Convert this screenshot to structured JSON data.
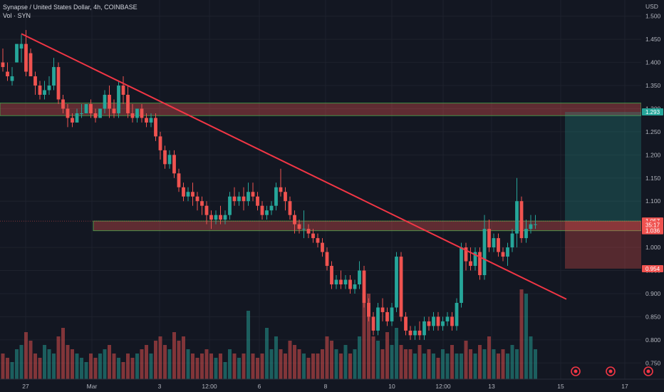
{
  "legend": {
    "line1": "Synapse / United States Dollar, 4h, COINBASE",
    "line2": "Vol · SYN"
  },
  "chart_data": {
    "type": "candlestick",
    "currency_label": "USD",
    "ylim": [
      0.715,
      1.535
    ],
    "y_ticks": [
      "1.500",
      "1.450",
      "1.400",
      "1.350",
      "1.300",
      "1.250",
      "1.200",
      "1.150",
      "1.100",
      "1.000",
      "0.950",
      "0.900",
      "0.850",
      "0.800",
      "0.750"
    ],
    "x_ticks": [
      "27",
      "Mar",
      "3",
      "12:00",
      "6",
      "8",
      "10",
      "12:00",
      "13",
      "15",
      "17"
    ],
    "price_tags": [
      {
        "value": 1.293,
        "label": "1.293",
        "color": "#26a69a"
      },
      {
        "value": 1.057,
        "label": "1.057",
        "color": "#ef5350"
      },
      {
        "value": 1.049,
        "label": "35:17",
        "color": "#ef5350"
      },
      {
        "value": 1.036,
        "label": "1.036",
        "color": "#ef5350"
      },
      {
        "value": 0.954,
        "label": "0.954",
        "color": "#ef5350"
      }
    ],
    "zones": [
      {
        "name": "resistance-zone",
        "top": 1.312,
        "bottom": 1.285
      },
      {
        "name": "support-zone",
        "top": 1.057,
        "bottom": 1.036
      }
    ],
    "trendline": {
      "start": [
        0,
        1.462
      ],
      "end": [
        128,
        0.888
      ]
    },
    "position": {
      "entry": 1.057,
      "target": 1.293,
      "stop": 0.954
    },
    "candles": [
      [
        1.4,
        1.43,
        1.39,
        1.38
      ],
      [
        1.38,
        1.4,
        1.37,
        1.36
      ],
      [
        1.36,
        1.39,
        1.37,
        1.35
      ],
      [
        1.4,
        1.4,
        1.44,
        1.43
      ],
      [
        1.43,
        1.46,
        1.44,
        1.4
      ],
      [
        1.44,
        1.47,
        1.38,
        1.37
      ],
      [
        1.42,
        1.43,
        1.37,
        1.37
      ],
      [
        1.37,
        1.38,
        1.35,
        1.33
      ],
      [
        1.35,
        1.36,
        1.33,
        1.32
      ],
      [
        1.33,
        1.36,
        1.34,
        1.32
      ],
      [
        1.34,
        1.37,
        1.35,
        1.33
      ],
      [
        1.35,
        1.41,
        1.39,
        1.34
      ],
      [
        1.39,
        1.4,
        1.32,
        1.31
      ],
      [
        1.32,
        1.33,
        1.3,
        1.29
      ],
      [
        1.3,
        1.31,
        1.28,
        1.26
      ],
      [
        1.28,
        1.29,
        1.27,
        1.26
      ],
      [
        1.27,
        1.3,
        1.29,
        1.27
      ],
      [
        1.29,
        1.31,
        1.29,
        1.28
      ],
      [
        1.29,
        1.31,
        1.31,
        1.29
      ],
      [
        1.31,
        1.32,
        1.29,
        1.28
      ],
      [
        1.29,
        1.3,
        1.28,
        1.27
      ],
      [
        1.28,
        1.29,
        1.3,
        1.28
      ],
      [
        1.3,
        1.34,
        1.33,
        1.29
      ],
      [
        1.33,
        1.35,
        1.3,
        1.28
      ],
      [
        1.3,
        1.32,
        1.29,
        1.28
      ],
      [
        1.29,
        1.36,
        1.35,
        1.28
      ],
      [
        1.35,
        1.37,
        1.33,
        1.31
      ],
      [
        1.33,
        1.35,
        1.29,
        1.28
      ],
      [
        1.29,
        1.31,
        1.28,
        1.27
      ],
      [
        1.28,
        1.3,
        1.3,
        1.27
      ],
      [
        1.3,
        1.31,
        1.28,
        1.27
      ],
      [
        1.28,
        1.29,
        1.27,
        1.26
      ],
      [
        1.27,
        1.29,
        1.28,
        1.26
      ],
      [
        1.28,
        1.29,
        1.24,
        1.23
      ],
      [
        1.24,
        1.25,
        1.21,
        1.19
      ],
      [
        1.21,
        1.22,
        1.18,
        1.17
      ],
      [
        1.18,
        1.21,
        1.2,
        1.17
      ],
      [
        1.2,
        1.21,
        1.16,
        1.15
      ],
      [
        1.16,
        1.17,
        1.13,
        1.12
      ],
      [
        1.13,
        1.14,
        1.11,
        1.1
      ],
      [
        1.11,
        1.13,
        1.12,
        1.1
      ],
      [
        1.12,
        1.14,
        1.11,
        1.09
      ],
      [
        1.11,
        1.12,
        1.1,
        1.08
      ],
      [
        1.1,
        1.11,
        1.09,
        1.07
      ],
      [
        1.09,
        1.1,
        1.07,
        1.05
      ],
      [
        1.07,
        1.08,
        1.06,
        1.04
      ],
      [
        1.06,
        1.08,
        1.07,
        1.05
      ],
      [
        1.07,
        1.09,
        1.06,
        1.05
      ],
      [
        1.06,
        1.08,
        1.07,
        1.05
      ],
      [
        1.07,
        1.12,
        1.11,
        1.06
      ],
      [
        1.11,
        1.13,
        1.1,
        1.09
      ],
      [
        1.1,
        1.12,
        1.11,
        1.09
      ],
      [
        1.11,
        1.13,
        1.1,
        1.08
      ],
      [
        1.1,
        1.14,
        1.12,
        1.09
      ],
      [
        1.12,
        1.14,
        1.11,
        1.1
      ],
      [
        1.11,
        1.12,
        1.09,
        1.08
      ],
      [
        1.09,
        1.1,
        1.07,
        1.06
      ],
      [
        1.07,
        1.09,
        1.08,
        1.06
      ],
      [
        1.08,
        1.1,
        1.09,
        1.07
      ],
      [
        1.09,
        1.14,
        1.13,
        1.08
      ],
      [
        1.13,
        1.17,
        1.12,
        1.11
      ],
      [
        1.12,
        1.13,
        1.1,
        1.08
      ],
      [
        1.1,
        1.11,
        1.07,
        1.06
      ],
      [
        1.07,
        1.08,
        1.05,
        1.03
      ],
      [
        1.05,
        1.06,
        1.04,
        1.03
      ],
      [
        1.04,
        1.08,
        1.04,
        1.02
      ],
      [
        1.04,
        1.05,
        1.03,
        1.02
      ],
      [
        1.03,
        1.04,
        1.02,
        1.01
      ],
      [
        1.02,
        1.03,
        1.01,
        1.0
      ],
      [
        1.01,
        1.02,
        0.99,
        0.98
      ],
      [
        0.99,
        1.0,
        0.96,
        0.95
      ],
      [
        0.96,
        0.97,
        0.92,
        0.91
      ],
      [
        0.92,
        0.94,
        0.93,
        0.91
      ],
      [
        0.93,
        0.95,
        0.92,
        0.91
      ],
      [
        0.92,
        0.94,
        0.93,
        0.91
      ],
      [
        0.93,
        0.94,
        0.91,
        0.9
      ],
      [
        0.91,
        0.93,
        0.92,
        0.9
      ],
      [
        0.92,
        0.97,
        0.95,
        0.91
      ],
      [
        0.95,
        0.96,
        0.88,
        0.87
      ],
      [
        0.88,
        0.89,
        0.85,
        0.84
      ],
      [
        0.85,
        0.86,
        0.82,
        0.81
      ],
      [
        0.82,
        0.88,
        0.87,
        0.81
      ],
      [
        0.87,
        0.89,
        0.86,
        0.84
      ],
      [
        0.86,
        0.87,
        0.84,
        0.83
      ],
      [
        0.84,
        0.88,
        0.87,
        0.83
      ],
      [
        0.87,
        0.99,
        0.98,
        0.86
      ],
      [
        0.98,
        0.99,
        0.85,
        0.84
      ],
      [
        0.85,
        0.86,
        0.82,
        0.81
      ],
      [
        0.82,
        0.83,
        0.81,
        0.8
      ],
      [
        0.81,
        0.83,
        0.82,
        0.8
      ],
      [
        0.82,
        0.84,
        0.81,
        0.8
      ],
      [
        0.81,
        0.85,
        0.84,
        0.8
      ],
      [
        0.84,
        0.85,
        0.83,
        0.82
      ],
      [
        0.83,
        0.86,
        0.85,
        0.82
      ],
      [
        0.85,
        0.86,
        0.83,
        0.82
      ],
      [
        0.83,
        0.85,
        0.84,
        0.82
      ],
      [
        0.84,
        0.86,
        0.85,
        0.83
      ],
      [
        0.85,
        0.86,
        0.83,
        0.82
      ],
      [
        0.83,
        0.89,
        0.88,
        0.82
      ],
      [
        0.88,
        1.01,
        1.0,
        0.87
      ],
      [
        1.0,
        1.01,
        0.97,
        0.95
      ],
      [
        0.97,
        1.0,
        0.96,
        0.95
      ],
      [
        0.96,
        1.0,
        0.99,
        0.95
      ],
      [
        0.99,
        1.0,
        0.94,
        0.93
      ],
      [
        0.94,
        1.07,
        1.04,
        0.93
      ],
      [
        1.04,
        1.06,
        1.0,
        0.99
      ],
      [
        1.0,
        1.03,
        1.02,
        0.99
      ],
      [
        1.02,
        1.03,
        0.99,
        0.98
      ],
      [
        0.99,
        1.0,
        0.98,
        0.97
      ],
      [
        0.98,
        1.01,
        1.0,
        0.96
      ],
      [
        1.0,
        1.04,
        1.03,
        0.99
      ],
      [
        1.03,
        1.15,
        1.1,
        1.0
      ],
      [
        1.1,
        1.11,
        1.02,
        1.01
      ],
      [
        1.02,
        1.06,
        1.04,
        1.01
      ],
      [
        1.04,
        1.07,
        1.05,
        1.03
      ],
      [
        1.05,
        1.07,
        1.05,
        1.04
      ]
    ],
    "volumes": [
      0.3,
      0.25,
      0.2,
      0.35,
      0.4,
      0.55,
      0.45,
      0.3,
      0.25,
      0.4,
      0.35,
      0.3,
      0.5,
      0.6,
      0.4,
      0.35,
      0.3,
      0.25,
      0.2,
      0.3,
      0.25,
      0.3,
      0.35,
      0.4,
      0.3,
      0.25,
      0.2,
      0.3,
      0.25,
      0.3,
      0.35,
      0.4,
      0.3,
      0.45,
      0.5,
      0.4,
      0.35,
      0.55,
      0.45,
      0.5,
      0.35,
      0.3,
      0.25,
      0.3,
      0.35,
      0.3,
      0.25,
      0.3,
      0.2,
      0.35,
      0.3,
      0.25,
      0.3,
      0.8,
      0.3,
      0.25,
      0.3,
      0.6,
      0.35,
      0.5,
      0.35,
      0.3,
      0.45,
      0.4,
      0.35,
      0.3,
      0.25,
      0.3,
      0.3,
      0.35,
      0.5,
      0.45,
      0.35,
      0.3,
      0.4,
      0.3,
      0.35,
      0.5,
      1.0,
      1.0,
      0.5,
      0.45,
      0.35,
      0.55,
      0.4,
      0.6,
      0.4,
      0.35,
      0.35,
      0.3,
      0.4,
      0.3,
      0.35,
      0.3,
      0.25,
      0.35,
      0.3,
      0.4,
      0.3,
      0.3,
      0.45,
      0.35,
      0.3,
      0.4,
      0.35,
      0.5,
      0.35,
      0.3,
      0.35,
      0.3,
      0.4,
      0.35,
      1.05,
      1.0,
      0.5,
      0.35,
      0.3
    ]
  }
}
